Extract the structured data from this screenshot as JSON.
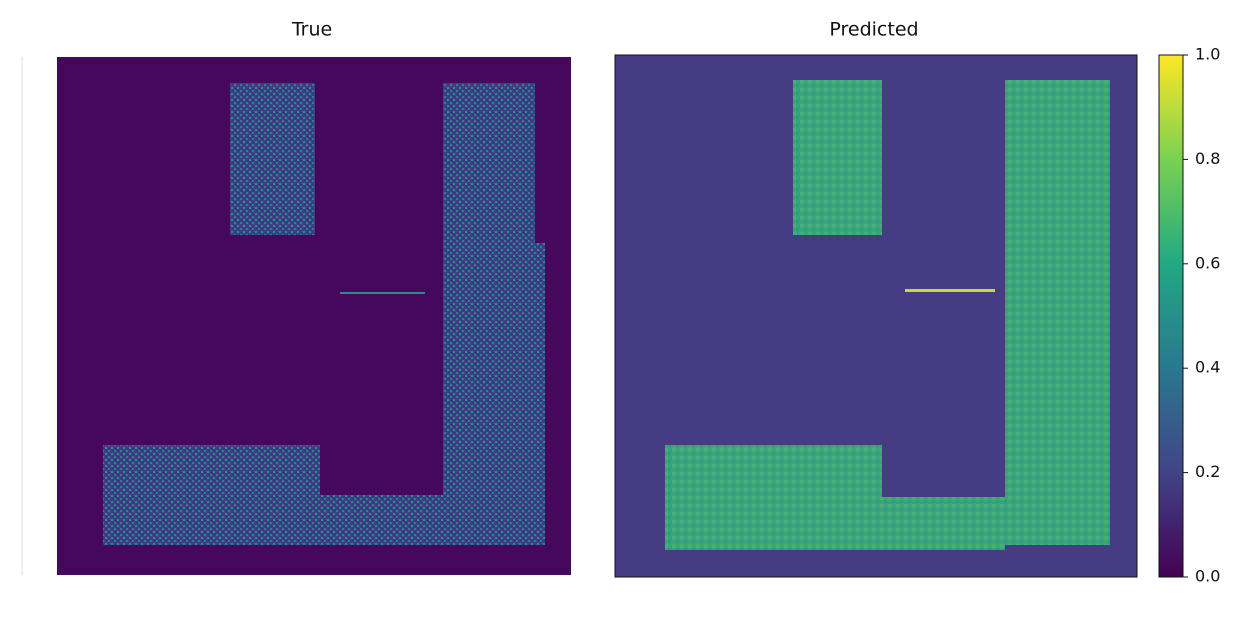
{
  "chart_data": [
    {
      "type": "heatmap",
      "title": "True"
    },
    {
      "type": "heatmap",
      "title": "Predicted",
      "colorbar": {
        "colormap": "viridis",
        "ylim": [
          0,
          1
        ],
        "yticks": [
          {
            "value": 0,
            "label": "0.0"
          },
          0.2,
          0.4,
          0.6,
          0.8,
          {
            "value": 1,
            "label": "1.0"
          }
        ]
      }
    }
  ]
}
